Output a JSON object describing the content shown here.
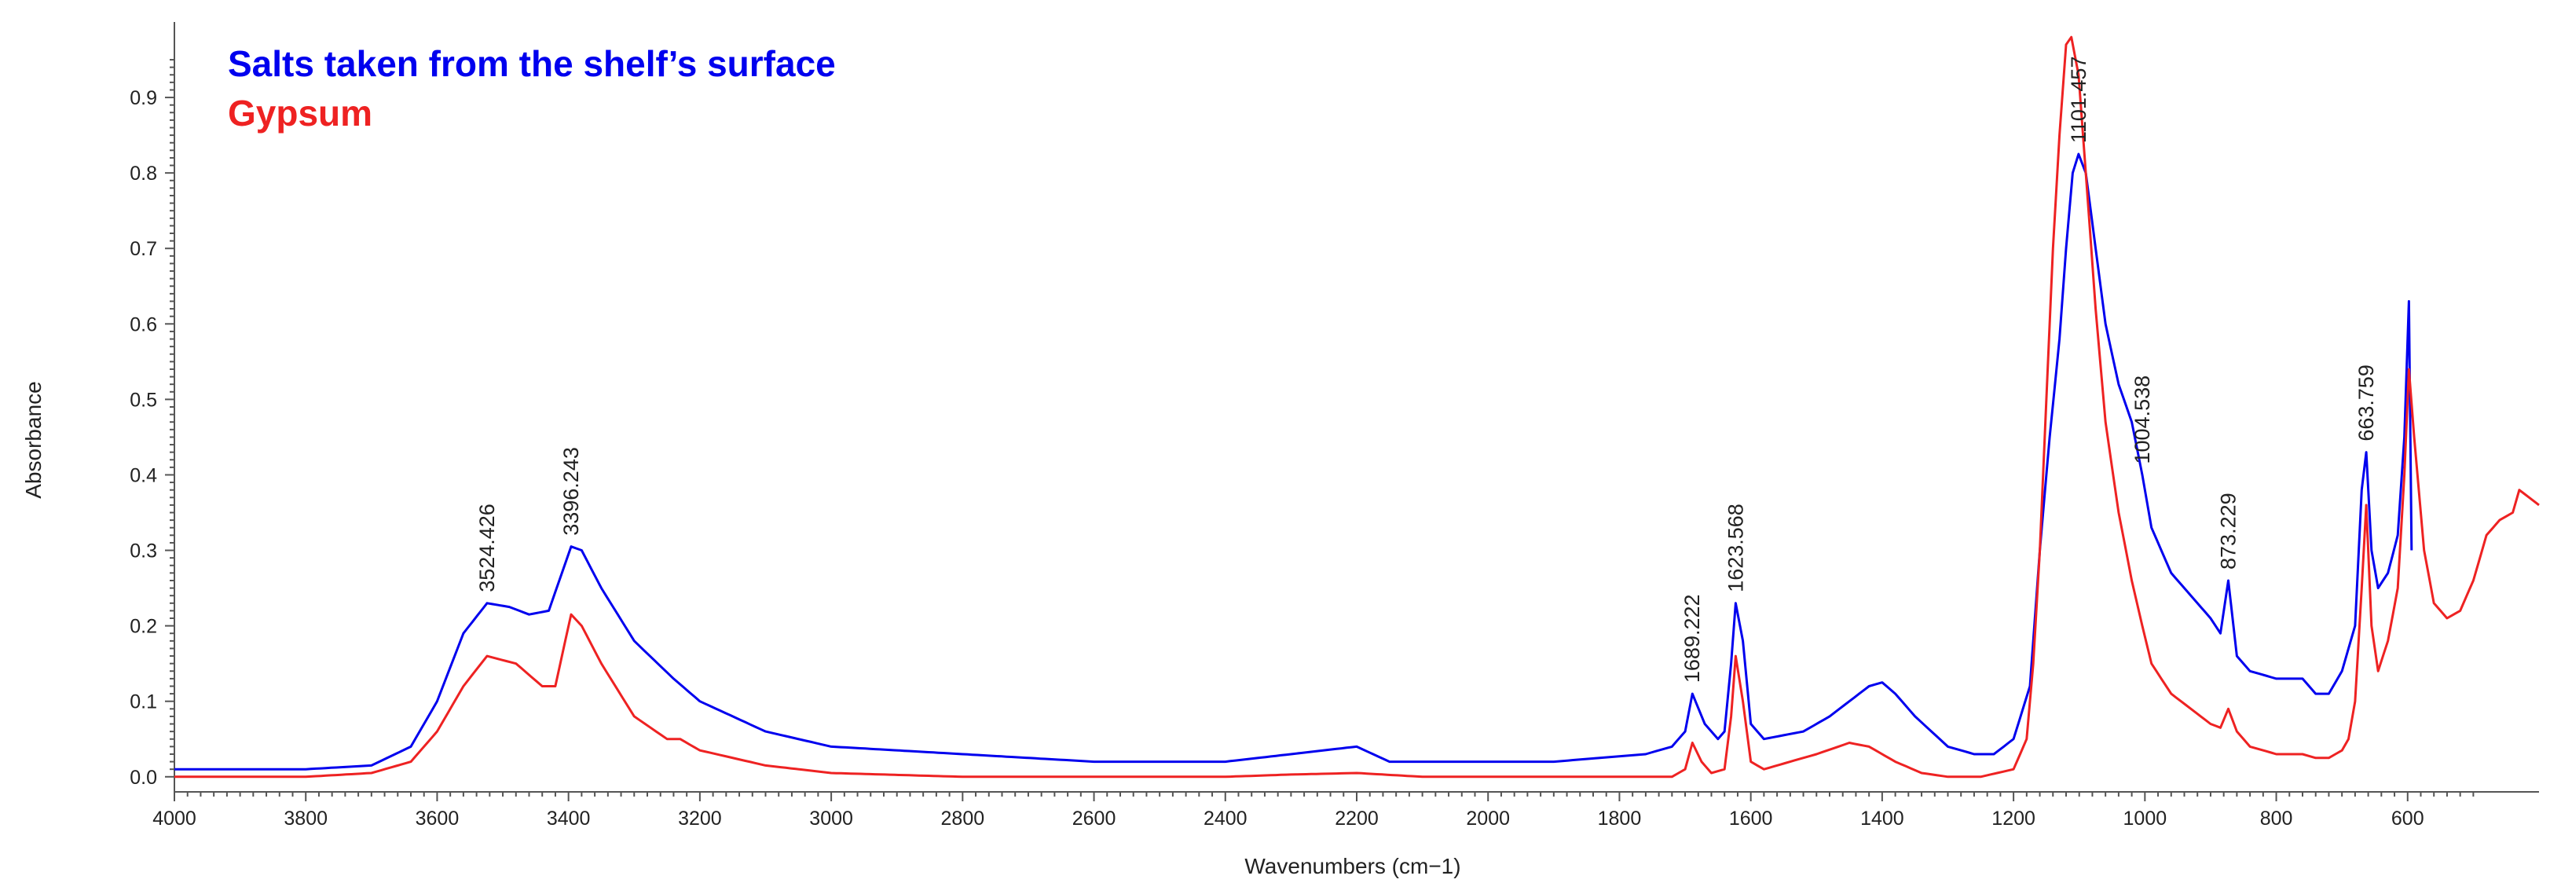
{
  "chart_data": {
    "type": "line",
    "title": "",
    "xlabel": "Wavenumbers (cm−1)",
    "ylabel": "Absorbance",
    "xlim": [
      4000,
      400
    ],
    "ylim": [
      -0.02,
      1.0
    ],
    "x_reversed": true,
    "x_ticks": [
      4000,
      3800,
      3600,
      3400,
      3200,
      3000,
      2800,
      2600,
      2400,
      2200,
      2000,
      1800,
      1600,
      1400,
      1200,
      1000,
      800,
      600
    ],
    "y_ticks": [
      0.0,
      0.1,
      0.2,
      0.3,
      0.4,
      0.5,
      0.6,
      0.7,
      0.8,
      0.9
    ],
    "grid": false,
    "legend_position": "top-left",
    "series": [
      {
        "name": "Salts taken from the shelf’s surface",
        "color": "#0000ee",
        "points": [
          [
            4000,
            0.01
          ],
          [
            3800,
            0.01
          ],
          [
            3700,
            0.015
          ],
          [
            3640,
            0.04
          ],
          [
            3600,
            0.1
          ],
          [
            3560,
            0.19
          ],
          [
            3524,
            0.23
          ],
          [
            3490,
            0.225
          ],
          [
            3460,
            0.215
          ],
          [
            3430,
            0.22
          ],
          [
            3410,
            0.27
          ],
          [
            3396,
            0.305
          ],
          [
            3380,
            0.3
          ],
          [
            3350,
            0.25
          ],
          [
            3300,
            0.18
          ],
          [
            3240,
            0.13
          ],
          [
            3200,
            0.1
          ],
          [
            3100,
            0.06
          ],
          [
            3000,
            0.04
          ],
          [
            2800,
            0.03
          ],
          [
            2600,
            0.02
          ],
          [
            2400,
            0.02
          ],
          [
            2300,
            0.03
          ],
          [
            2200,
            0.04
          ],
          [
            2150,
            0.02
          ],
          [
            2000,
            0.02
          ],
          [
            1900,
            0.02
          ],
          [
            1760,
            0.03
          ],
          [
            1720,
            0.04
          ],
          [
            1700,
            0.06
          ],
          [
            1689,
            0.11
          ],
          [
            1670,
            0.07
          ],
          [
            1650,
            0.05
          ],
          [
            1640,
            0.06
          ],
          [
            1630,
            0.15
          ],
          [
            1623,
            0.23
          ],
          [
            1612,
            0.18
          ],
          [
            1600,
            0.07
          ],
          [
            1580,
            0.05
          ],
          [
            1520,
            0.06
          ],
          [
            1480,
            0.08
          ],
          [
            1420,
            0.12
          ],
          [
            1400,
            0.125
          ],
          [
            1380,
            0.11
          ],
          [
            1350,
            0.08
          ],
          [
            1300,
            0.04
          ],
          [
            1260,
            0.03
          ],
          [
            1230,
            0.03
          ],
          [
            1200,
            0.05
          ],
          [
            1175,
            0.12
          ],
          [
            1160,
            0.3
          ],
          [
            1145,
            0.45
          ],
          [
            1130,
            0.58
          ],
          [
            1120,
            0.7
          ],
          [
            1110,
            0.8
          ],
          [
            1101,
            0.825
          ],
          [
            1090,
            0.8
          ],
          [
            1075,
            0.7
          ],
          [
            1060,
            0.6
          ],
          [
            1040,
            0.52
          ],
          [
            1020,
            0.47
          ],
          [
            1004,
            0.4
          ],
          [
            990,
            0.33
          ],
          [
            960,
            0.27
          ],
          [
            930,
            0.24
          ],
          [
            900,
            0.21
          ],
          [
            885,
            0.19
          ],
          [
            873,
            0.26
          ],
          [
            860,
            0.16
          ],
          [
            840,
            0.14
          ],
          [
            800,
            0.13
          ],
          [
            760,
            0.13
          ],
          [
            740,
            0.11
          ],
          [
            720,
            0.11
          ],
          [
            700,
            0.14
          ],
          [
            690,
            0.17
          ],
          [
            680,
            0.2
          ],
          [
            670,
            0.38
          ],
          [
            663,
            0.43
          ],
          [
            655,
            0.3
          ],
          [
            645,
            0.25
          ],
          [
            630,
            0.27
          ],
          [
            615,
            0.32
          ],
          [
            605,
            0.45
          ],
          [
            598,
            0.63
          ],
          [
            594,
            0.3
          ]
        ]
      },
      {
        "name": "Gypsum",
        "color": "#ee2222",
        "points": [
          [
            4000,
            0.0
          ],
          [
            3800,
            0.0
          ],
          [
            3700,
            0.005
          ],
          [
            3640,
            0.02
          ],
          [
            3600,
            0.06
          ],
          [
            3560,
            0.12
          ],
          [
            3524,
            0.16
          ],
          [
            3480,
            0.15
          ],
          [
            3440,
            0.12
          ],
          [
            3420,
            0.12
          ],
          [
            3405,
            0.18
          ],
          [
            3396,
            0.215
          ],
          [
            3380,
            0.2
          ],
          [
            3350,
            0.15
          ],
          [
            3300,
            0.08
          ],
          [
            3250,
            0.05
          ],
          [
            3230,
            0.05
          ],
          [
            3200,
            0.035
          ],
          [
            3100,
            0.015
          ],
          [
            3000,
            0.005
          ],
          [
            2800,
            0.0
          ],
          [
            2600,
            0.0
          ],
          [
            2400,
            0.0
          ],
          [
            2300,
            0.003
          ],
          [
            2200,
            0.005
          ],
          [
            2100,
            0.0
          ],
          [
            2000,
            0.0
          ],
          [
            1800,
            0.0
          ],
          [
            1720,
            0.0
          ],
          [
            1700,
            0.01
          ],
          [
            1689,
            0.045
          ],
          [
            1675,
            0.02
          ],
          [
            1660,
            0.005
          ],
          [
            1640,
            0.01
          ],
          [
            1630,
            0.08
          ],
          [
            1623,
            0.16
          ],
          [
            1612,
            0.1
          ],
          [
            1600,
            0.02
          ],
          [
            1580,
            0.01
          ],
          [
            1540,
            0.02
          ],
          [
            1500,
            0.03
          ],
          [
            1450,
            0.045
          ],
          [
            1420,
            0.04
          ],
          [
            1380,
            0.02
          ],
          [
            1340,
            0.005
          ],
          [
            1300,
            0.0
          ],
          [
            1250,
            0.0
          ],
          [
            1200,
            0.01
          ],
          [
            1180,
            0.05
          ],
          [
            1170,
            0.15
          ],
          [
            1160,
            0.3
          ],
          [
            1150,
            0.5
          ],
          [
            1140,
            0.7
          ],
          [
            1130,
            0.85
          ],
          [
            1120,
            0.97
          ],
          [
            1112,
            0.98
          ],
          [
            1101,
            0.93
          ],
          [
            1090,
            0.8
          ],
          [
            1075,
            0.62
          ],
          [
            1060,
            0.47
          ],
          [
            1040,
            0.35
          ],
          [
            1020,
            0.26
          ],
          [
            1004,
            0.2
          ],
          [
            990,
            0.15
          ],
          [
            960,
            0.11
          ],
          [
            930,
            0.09
          ],
          [
            900,
            0.07
          ],
          [
            885,
            0.065
          ],
          [
            873,
            0.09
          ],
          [
            860,
            0.06
          ],
          [
            840,
            0.04
          ],
          [
            800,
            0.03
          ],
          [
            760,
            0.03
          ],
          [
            740,
            0.025
          ],
          [
            720,
            0.025
          ],
          [
            700,
            0.035
          ],
          [
            690,
            0.05
          ],
          [
            680,
            0.1
          ],
          [
            670,
            0.25
          ],
          [
            663,
            0.36
          ],
          [
            655,
            0.2
          ],
          [
            645,
            0.14
          ],
          [
            630,
            0.18
          ],
          [
            615,
            0.25
          ],
          [
            605,
            0.4
          ],
          [
            598,
            0.54
          ],
          [
            590,
            0.45
          ],
          [
            575,
            0.3
          ],
          [
            560,
            0.23
          ],
          [
            540,
            0.21
          ],
          [
            520,
            0.22
          ],
          [
            500,
            0.26
          ],
          [
            480,
            0.32
          ],
          [
            460,
            0.34
          ],
          [
            440,
            0.35
          ],
          [
            430,
            0.38
          ],
          [
            415,
            0.37
          ],
          [
            400,
            0.36
          ]
        ]
      }
    ],
    "annotations": [
      {
        "text": "3524.426",
        "x": 3524,
        "y": 0.23
      },
      {
        "text": "3396.243",
        "x": 3396,
        "y": 0.305
      },
      {
        "text": "1689.222",
        "x": 1689,
        "y": 0.11
      },
      {
        "text": "1623.568",
        "x": 1623,
        "y": 0.23
      },
      {
        "text": "1101.457",
        "x": 1101,
        "y": 0.825
      },
      {
        "text": "1004.538",
        "x": 1004,
        "y": 0.4
      },
      {
        "text": "873.229",
        "x": 873,
        "y": 0.26
      },
      {
        "text": "663.759",
        "x": 663,
        "y": 0.43
      }
    ]
  }
}
